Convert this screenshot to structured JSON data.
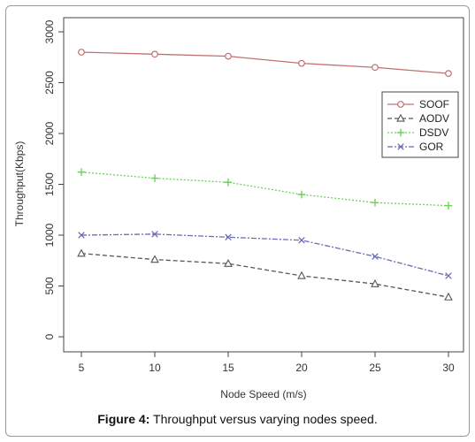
{
  "chart_data": {
    "type": "line",
    "xlabel": "Node Speed (m/s)",
    "ylabel": "Throughput(Kbps)",
    "x": [
      5,
      10,
      15,
      20,
      25,
      30
    ],
    "xticks": [
      "5",
      "10",
      "15",
      "20",
      "25",
      "30"
    ],
    "yticks": [
      "0",
      "500",
      "1000",
      "1500",
      "2000",
      "2500",
      "3000"
    ],
    "ylim": [
      0,
      3000
    ],
    "grid": false,
    "legend_position": "right",
    "series": [
      {
        "name": "SOOF",
        "marker": "circle",
        "line": "solid",
        "color": "#c07070",
        "values": [
          2800,
          2780,
          2760,
          2690,
          2650,
          2590
        ]
      },
      {
        "name": "AODV",
        "marker": "triangle",
        "line": "dashed",
        "color": "#555555",
        "values": [
          820,
          760,
          720,
          600,
          520,
          390
        ]
      },
      {
        "name": "DSDV",
        "marker": "plus",
        "line": "dotted",
        "color": "#6fcf5f",
        "values": [
          1620,
          1560,
          1520,
          1400,
          1320,
          1290
        ]
      },
      {
        "name": "GOR",
        "marker": "cross",
        "line": "dashdot",
        "color": "#6a6ab8",
        "values": [
          1000,
          1010,
          980,
          950,
          790,
          600
        ]
      }
    ]
  },
  "caption": {
    "label": "Figure 4:",
    "text": " Throughput versus varying nodes speed."
  }
}
